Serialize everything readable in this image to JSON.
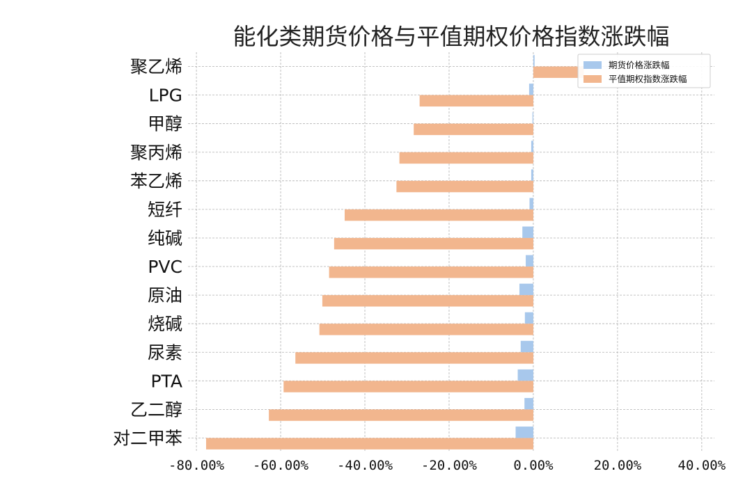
{
  "chart_data": {
    "type": "bar",
    "orientation": "horizontal",
    "title": "能化类期货价格与平值期权价格指数涨跌幅",
    "categories": [
      "聚乙烯",
      "LPG",
      "甲醇",
      "聚丙烯",
      "苯乙烯",
      "短纤",
      "纯碱",
      "PVC",
      "原油",
      "烧碱",
      "尿素",
      "PTA",
      "乙二醇",
      "对二甲苯"
    ],
    "series": [
      {
        "name": "期货价格涨跌幅",
        "color": "#a8c8ec",
        "values": [
          0.3,
          -1.0,
          -0.2,
          -0.5,
          -0.5,
          -0.9,
          -2.6,
          -1.8,
          -3.3,
          -2.0,
          -3.0,
          -3.7,
          -2.1,
          -4.2
        ]
      },
      {
        "name": "平值期权指数涨跌幅",
        "color": "#f2b68e",
        "values": [
          12.0,
          -27.0,
          -28.4,
          -31.8,
          -32.5,
          -44.8,
          -47.3,
          -48.5,
          -50.1,
          -50.8,
          -56.5,
          -59.3,
          -62.8,
          -77.7
        ]
      }
    ],
    "xlim": [
      -82,
      43
    ],
    "xticks": [
      -80,
      -60,
      -40,
      -20,
      0,
      20,
      40
    ],
    "xtick_labels": [
      "-80.00%",
      "-60.00%",
      "-40.00%",
      "-20.00%",
      "0.00%",
      "20.00%",
      "40.00%"
    ],
    "xlabel": "",
    "ylabel": "",
    "grid": true,
    "legend_position": "top-right"
  }
}
